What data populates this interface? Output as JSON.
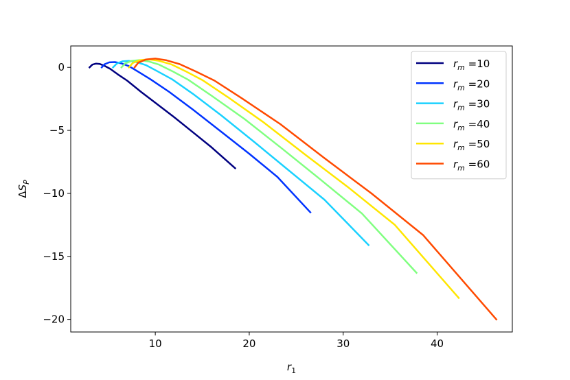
{
  "chart_data": {
    "type": "line",
    "title": "",
    "xlabel": "r",
    "xlabel_sub": "1",
    "ylabel_prefix": "ΔS",
    "ylabel_sub": "P",
    "xlim": [
      1.0,
      48.0
    ],
    "ylim": [
      -21.0,
      1.7
    ],
    "xticks": [
      10,
      20,
      30,
      40
    ],
    "yticks": [
      0,
      -5,
      -10,
      -15,
      -20
    ],
    "grid": false,
    "legend_position": "top-right",
    "series": [
      {
        "name": "r_m =10",
        "legend_var": "r",
        "legend_sub": "m",
        "legend_val": " =10",
        "color": "#000080",
        "x": [
          3.0,
          3.3,
          3.7,
          4.1,
          4.6,
          5.2,
          6.0,
          7.0,
          8.5,
          10.0,
          12.0,
          14.0,
          16.0,
          18.5
        ],
        "y": [
          0.0,
          0.22,
          0.3,
          0.27,
          0.12,
          -0.12,
          -0.55,
          -1.05,
          -1.95,
          -2.8,
          -3.95,
          -5.15,
          -6.35,
          -8.0
        ]
      },
      {
        "name": "r_m =20",
        "legend_var": "r",
        "legend_sub": "m",
        "legend_val": " =20",
        "color": "#0033ff",
        "x": [
          4.3,
          4.6,
          5.1,
          5.7,
          6.4,
          7.2,
          8.2,
          9.5,
          11.5,
          14.0,
          17.0,
          20.0,
          23.0,
          26.5
        ],
        "y": [
          0.0,
          0.25,
          0.4,
          0.42,
          0.32,
          0.1,
          -0.35,
          -0.95,
          -1.95,
          -3.35,
          -5.1,
          -6.85,
          -8.7,
          -11.5
        ]
      },
      {
        "name": "r_m =30",
        "legend_var": "r",
        "legend_sub": "m",
        "legend_val": " =30",
        "color": "#1ad1ff",
        "x": [
          5.5,
          5.9,
          6.5,
          7.2,
          8.0,
          9.0,
          10.2,
          11.8,
          14.0,
          17.0,
          20.5,
          24.0,
          28.0,
          32.7
        ],
        "y": [
          0.0,
          0.3,
          0.48,
          0.52,
          0.42,
          0.18,
          -0.3,
          -0.95,
          -2.1,
          -3.8,
          -5.9,
          -8.05,
          -10.5,
          -14.1
        ]
      },
      {
        "name": "r_m =40",
        "legend_var": "r",
        "legend_sub": "m",
        "legend_val": " =40",
        "color": "#80ff80",
        "x": [
          6.4,
          6.8,
          7.5,
          8.3,
          9.3,
          10.4,
          11.8,
          13.5,
          16.0,
          19.5,
          23.5,
          27.5,
          32.0,
          37.8
        ],
        "y": [
          0.0,
          0.32,
          0.52,
          0.58,
          0.47,
          0.22,
          -0.3,
          -0.98,
          -2.25,
          -4.1,
          -6.45,
          -8.85,
          -11.6,
          -16.3
        ]
      },
      {
        "name": "r_m =50",
        "legend_var": "r",
        "legend_sub": "m",
        "legend_val": " =50",
        "color": "#ffe600",
        "x": [
          7.2,
          7.6,
          8.4,
          9.3,
          10.4,
          11.7,
          13.2,
          15.0,
          17.7,
          21.5,
          26.0,
          30.5,
          35.5,
          42.3
        ],
        "y": [
          0.0,
          0.35,
          0.58,
          0.64,
          0.52,
          0.24,
          -0.3,
          -1.0,
          -2.35,
          -4.35,
          -6.95,
          -9.5,
          -12.5,
          -18.3
        ]
      },
      {
        "name": "r_m =60",
        "legend_var": "r",
        "legend_sub": "m",
        "legend_val": " =60",
        "color": "#ff4a00",
        "x": [
          7.8,
          8.2,
          9.0,
          10.0,
          11.2,
          12.6,
          14.3,
          16.3,
          19.2,
          23.3,
          28.0,
          33.0,
          38.5,
          46.3
        ],
        "y": [
          0.0,
          0.38,
          0.62,
          0.7,
          0.56,
          0.26,
          -0.32,
          -1.05,
          -2.45,
          -4.5,
          -7.2,
          -10.0,
          -13.3,
          -20.0
        ]
      }
    ]
  }
}
